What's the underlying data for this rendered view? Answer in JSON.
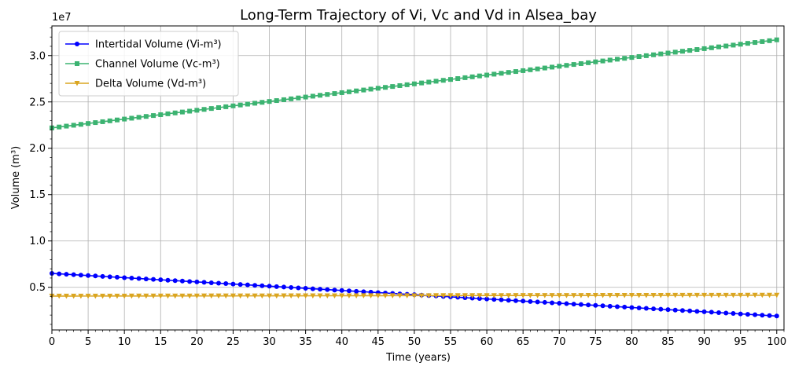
{
  "chart_data": {
    "type": "line",
    "title": "Long-Term Trajectory of Vi, Vc and Vd in Alsea_bay",
    "xlabel": "Time (years)",
    "ylabel": "Volume (m³)",
    "y_offset_label": "1e7",
    "xlim": [
      0,
      101
    ],
    "ylim": [
      400000,
      33200000
    ],
    "x_ticks": [
      0,
      5,
      10,
      15,
      20,
      25,
      30,
      35,
      40,
      45,
      50,
      55,
      60,
      65,
      70,
      75,
      80,
      85,
      90,
      95,
      100
    ],
    "y_ticks": [
      5000000,
      10000000,
      15000000,
      20000000,
      25000000,
      30000000
    ],
    "y_tick_labels": [
      "0.5",
      "1.0",
      "1.5",
      "2.0",
      "2.5",
      "3.0"
    ],
    "grid": true,
    "legend_position": "top-left",
    "series": [
      {
        "name": "Intertidal Volume (Vi-m³)",
        "color": "#0000ff",
        "marker": "circle",
        "start": 6500000,
        "end": 1900000,
        "x_start": 0,
        "x_end": 100,
        "x_step": 1
      },
      {
        "name": "Channel Volume (Vc-m³)",
        "color": "#3cb371",
        "marker": "square",
        "start": 22200000,
        "end": 31700000,
        "x_start": 0,
        "x_end": 100,
        "x_step": 1
      },
      {
        "name": "Delta Volume (Vd-m³)",
        "color": "#daa520",
        "marker": "triangle-down",
        "start": 4050000,
        "end": 4150000,
        "x_start": 0,
        "x_end": 100,
        "x_step": 1
      }
    ]
  }
}
